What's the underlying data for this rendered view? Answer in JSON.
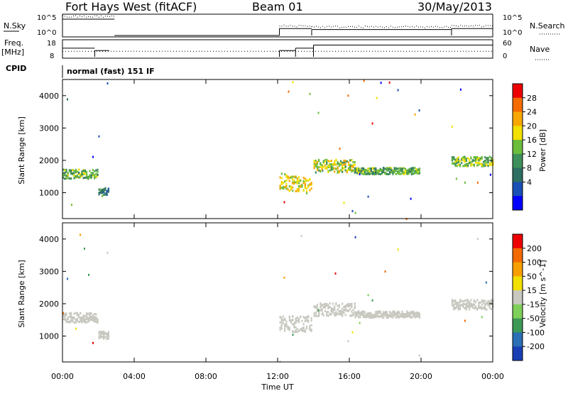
{
  "header": {
    "station": "Fort Hays West (fitACF)",
    "beam": "Beam 01",
    "date": "30/May/2013"
  },
  "top_panels": {
    "nsky_label": "N.Sky",
    "nsky_ticks": [
      "10^5",
      "10^0"
    ],
    "nsearch_label": "N.Search",
    "nsearch_ticks": [
      "10^5",
      "10^0"
    ],
    "freq_label": "Freq.",
    "freq_unit": "[MHz]",
    "freq_ticks": [
      "18",
      "8"
    ],
    "nave_label": "Nave",
    "nave_ticks": [
      "60",
      "0"
    ],
    "cpid_label": "CPID",
    "cpid_text": "normal (fast) 151 IF"
  },
  "colorbars": {
    "power": {
      "label": "Power [dB]",
      "ticks": [
        "28",
        "24",
        "20",
        "16",
        "12",
        "8",
        "4"
      ],
      "colors": [
        "#0000ff",
        "#1a4fb5",
        "#2e6f63",
        "#3f8f5a",
        "#6bbd3b",
        "#f2e000",
        "#f7a800",
        "#f56b00",
        "#ee0000"
      ]
    },
    "velocity": {
      "label": "Velocity [m s^-1]",
      "ticks": [
        "200",
        "100",
        "50",
        "15",
        "-15",
        "-50",
        "-100",
        "-200"
      ],
      "colors": [
        "#1a3fb5",
        "#2c6fb4",
        "#3c9a56",
        "#7fd05a",
        "#c8c8c0",
        "#f2e000",
        "#f7a000",
        "#f26a00",
        "#ee0000"
      ]
    }
  },
  "chart_data": [
    {
      "type": "heatmap",
      "panel": "power",
      "ylabel": "Slant Range [km]",
      "ylim": [
        200,
        4500
      ],
      "yticks": [
        "4000",
        "3000",
        "2000",
        "1000"
      ],
      "x_range_hours": [
        0,
        24
      ],
      "scatter_bands": [
        {
          "start_h": 0.0,
          "end_h": 2.0,
          "range_center_km": 1600,
          "range_width_km": 300,
          "power_db": 14
        },
        {
          "start_h": 2.0,
          "end_h": 2.6,
          "range_center_km": 1050,
          "range_width_km": 250,
          "power_db": 10
        },
        {
          "start_h": 12.1,
          "end_h": 13.9,
          "range_center_km": 1400,
          "range_width_km": 500,
          "power_db": 20
        },
        {
          "start_h": 14.0,
          "end_h": 16.3,
          "range_center_km": 1850,
          "range_width_km": 400,
          "power_db": 18
        },
        {
          "start_h": 16.3,
          "end_h": 19.9,
          "range_center_km": 1700,
          "range_width_km": 200,
          "power_db": 14
        },
        {
          "start_h": 21.7,
          "end_h": 24.0,
          "range_center_km": 2000,
          "range_width_km": 300,
          "power_db": 16
        }
      ]
    },
    {
      "type": "heatmap",
      "panel": "velocity",
      "ylabel": "Slant Range [km]",
      "ylim": [
        200,
        4500
      ],
      "yticks": [
        "4000",
        "3000",
        "2000",
        "1000"
      ],
      "xlabel": "Time UT",
      "xticks": [
        "00:00",
        "04:00",
        "08:00",
        "12:00",
        "16:00",
        "20:00",
        "00:00"
      ],
      "x_range_hours": [
        0,
        24
      ],
      "scatter_bands": [
        {
          "start_h": 0.0,
          "end_h": 2.0,
          "range_center_km": 1600,
          "range_width_km": 300,
          "velocity_ms": 0
        },
        {
          "start_h": 2.0,
          "end_h": 2.6,
          "range_center_km": 1050,
          "range_width_km": 250,
          "velocity_ms": 0
        },
        {
          "start_h": 12.1,
          "end_h": 13.9,
          "range_center_km": 1400,
          "range_width_km": 500,
          "velocity_ms": 0
        },
        {
          "start_h": 14.0,
          "end_h": 16.3,
          "range_center_km": 1850,
          "range_width_km": 400,
          "velocity_ms": 0
        },
        {
          "start_h": 16.3,
          "end_h": 19.9,
          "range_center_km": 1700,
          "range_width_km": 200,
          "velocity_ms": 0
        },
        {
          "start_h": 21.7,
          "end_h": 24.0,
          "range_center_km": 2000,
          "range_width_km": 300,
          "velocity_ms": 0
        }
      ]
    }
  ]
}
